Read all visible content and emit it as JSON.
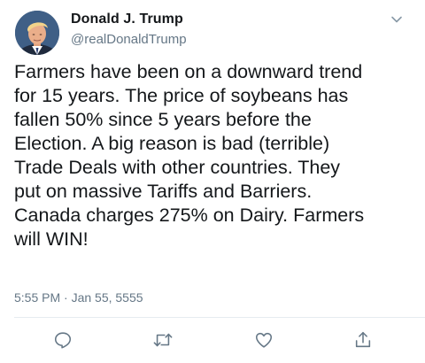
{
  "tweet": {
    "author": {
      "display_name": "Donald J. Trump",
      "handle": "@realDonaldTrump",
      "avatar_icon": "profile-photo"
    },
    "text_lines": [
      "Farmers have been on a downward trend",
      "for 15 years. The price of soybeans has",
      "fallen 50% since 5 years before the",
      "Election. A big reason is bad (terrible)",
      "Trade Deals with other countries. They",
      "put on massive Tariffs and Barriers.",
      "Canada charges 275% on Dairy. Farmers",
      "will WIN!"
    ],
    "timestamp": "5:55 PM · Jan 55, 5555",
    "actions": {
      "reply_icon": "reply-icon",
      "retweet_icon": "retweet-icon",
      "like_icon": "heart-icon",
      "share_icon": "share-icon"
    },
    "colors": {
      "text": "#14171a",
      "secondary": "#657786",
      "divider": "#e6ecf0"
    }
  }
}
